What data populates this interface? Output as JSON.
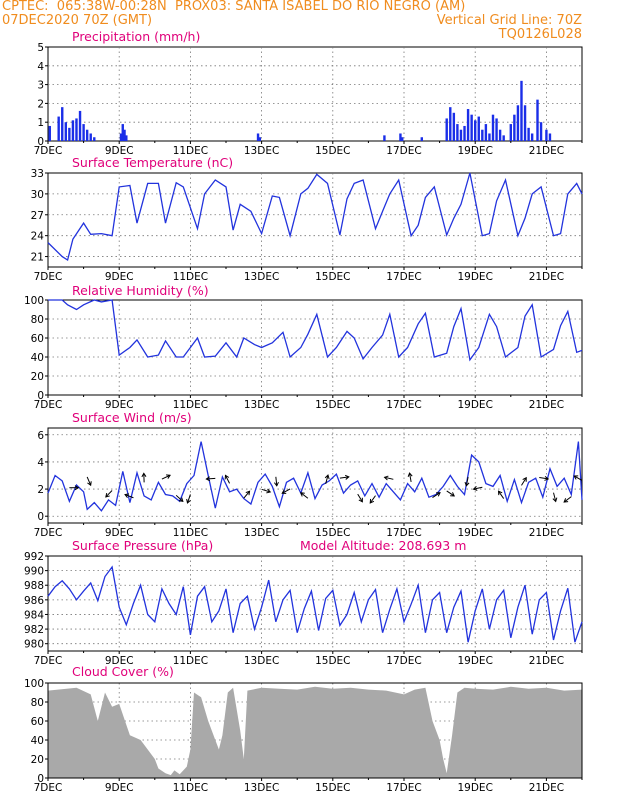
{
  "header": {
    "line1": "CPTEC:  065:38W-00:28N  PROX03: SANTA ISABEL DO RIO NEGRO (AM)",
    "line2_left": "07DEC2020 70Z (GMT)",
    "line2_right": "Vertical Grid Line: 70Z",
    "line3_right": "TQ0126L028"
  },
  "x_tick_labels": [
    "7DEC",
    "9DEC",
    "11DEC",
    "13DEC",
    "15DEC",
    "17DEC",
    "19DEC",
    "21DEC"
  ],
  "colors": {
    "header": "#f08c1e",
    "title": "#e0007a",
    "line": "#2233dd",
    "bar": "#1a2ee8",
    "cloud": "#a9a9a9"
  },
  "chart_data": [
    {
      "type": "bar",
      "title": "Precipitation (mm/h)",
      "xlim_days": [
        7,
        22
      ],
      "ylim": [
        0,
        5
      ],
      "yticks": [
        0,
        1,
        2,
        3,
        4,
        5
      ],
      "bars": [
        [
          7.05,
          0.8
        ],
        [
          7.3,
          1.3
        ],
        [
          7.4,
          1.8
        ],
        [
          7.5,
          1.0
        ],
        [
          7.6,
          0.7
        ],
        [
          7.7,
          1.1
        ],
        [
          7.8,
          1.2
        ],
        [
          7.9,
          1.6
        ],
        [
          8.0,
          0.9
        ],
        [
          8.1,
          0.6
        ],
        [
          8.2,
          0.4
        ],
        [
          8.3,
          0.2
        ],
        [
          9.05,
          0.4
        ],
        [
          9.1,
          0.9
        ],
        [
          9.15,
          0.6
        ],
        [
          9.2,
          0.3
        ],
        [
          12.9,
          0.4
        ],
        [
          12.95,
          0.2
        ],
        [
          16.45,
          0.3
        ],
        [
          16.9,
          0.4
        ],
        [
          16.95,
          0.2
        ],
        [
          17.5,
          0.2
        ],
        [
          18.2,
          1.2
        ],
        [
          18.3,
          1.8
        ],
        [
          18.4,
          1.5
        ],
        [
          18.5,
          0.9
        ],
        [
          18.6,
          0.6
        ],
        [
          18.7,
          0.8
        ],
        [
          18.8,
          1.7
        ],
        [
          18.9,
          1.4
        ],
        [
          19.0,
          1.1
        ],
        [
          19.1,
          1.3
        ],
        [
          19.2,
          0.6
        ],
        [
          19.3,
          0.9
        ],
        [
          19.4,
          0.4
        ],
        [
          19.5,
          1.4
        ],
        [
          19.6,
          1.2
        ],
        [
          19.7,
          0.6
        ],
        [
          19.8,
          0.3
        ],
        [
          20.0,
          0.9
        ],
        [
          20.1,
          1.4
        ],
        [
          20.2,
          1.9
        ],
        [
          20.3,
          3.2
        ],
        [
          20.4,
          1.9
        ],
        [
          20.5,
          0.7
        ],
        [
          20.6,
          0.4
        ],
        [
          20.75,
          2.2
        ],
        [
          20.85,
          1.0
        ],
        [
          21.0,
          0.6
        ],
        [
          21.1,
          0.4
        ]
      ]
    },
    {
      "type": "line",
      "title": "Surface Temperature (nC)",
      "ylim": [
        19.5,
        33
      ],
      "yticks": [
        21,
        24,
        27,
        30,
        33
      ],
      "series": [
        {
          "x": [
            7.0,
            7.4,
            7.55,
            7.7,
            8.0,
            8.2,
            8.5,
            8.8,
            9.0,
            9.3,
            9.5,
            9.8,
            10.1,
            10.3,
            10.6,
            10.8,
            11.2,
            11.4,
            11.7,
            12.0,
            12.2,
            12.4,
            12.7,
            13.0,
            13.3,
            13.5,
            13.8,
            14.1,
            14.3,
            14.55,
            14.85,
            15.2,
            15.4,
            15.6,
            15.85,
            16.2,
            16.4,
            16.6,
            16.85,
            17.2,
            17.4,
            17.6,
            17.85,
            18.2,
            18.4,
            18.6,
            18.85,
            19.2,
            19.4,
            19.6,
            19.85,
            20.2,
            20.4,
            20.6,
            20.85,
            21.2,
            21.4,
            21.6,
            21.85,
            22.0
          ],
          "values": [
            23.0,
            21.0,
            20.5,
            23.5,
            25.8,
            24.2,
            24.3,
            24.0,
            31.0,
            31.2,
            25.8,
            31.5,
            31.5,
            25.8,
            31.6,
            31.0,
            25.0,
            30.0,
            32.0,
            31.0,
            24.8,
            28.5,
            27.5,
            24.3,
            29.7,
            29.5,
            24.0,
            30.0,
            30.8,
            32.8,
            31.5,
            24.1,
            29.3,
            31.5,
            32.0,
            25.0,
            27.5,
            30.0,
            32.0,
            24.0,
            25.5,
            29.5,
            31.0,
            24.1,
            26.5,
            28.5,
            33.0,
            24.0,
            24.3,
            29.0,
            32.0,
            24.0,
            26.5,
            30.0,
            31.0,
            24.0,
            24.3,
            30.0,
            31.5,
            30.0
          ]
        }
      ]
    },
    {
      "type": "line",
      "title": "Relative Humidity (%)",
      "ylim": [
        0,
        100
      ],
      "yticks": [
        0,
        20,
        40,
        60,
        80,
        100
      ],
      "series": [
        {
          "x": [
            7.0,
            7.4,
            7.55,
            7.8,
            8.0,
            8.3,
            8.5,
            8.8,
            9.0,
            9.3,
            9.5,
            9.8,
            10.1,
            10.3,
            10.6,
            10.8,
            11.2,
            11.4,
            11.7,
            12.0,
            12.3,
            12.5,
            12.8,
            13.0,
            13.3,
            13.6,
            13.8,
            14.1,
            14.3,
            14.55,
            14.85,
            15.1,
            15.4,
            15.6,
            15.85,
            16.1,
            16.4,
            16.6,
            16.85,
            17.1,
            17.4,
            17.6,
            17.85,
            18.2,
            18.4,
            18.6,
            18.85,
            19.1,
            19.4,
            19.6,
            19.85,
            20.2,
            20.4,
            20.6,
            20.85,
            21.2,
            21.4,
            21.6,
            21.85,
            22.0
          ],
          "values": [
            100,
            100,
            95,
            90,
            95,
            100,
            98,
            100,
            42,
            50,
            58,
            40,
            42,
            57,
            40,
            40,
            60,
            40,
            41,
            55,
            40,
            60,
            53,
            50,
            55,
            66,
            40,
            50,
            64,
            85,
            40,
            50,
            67,
            60,
            38,
            50,
            63,
            85,
            40,
            50,
            75,
            86,
            40,
            44,
            72,
            91,
            37,
            50,
            85,
            72,
            40,
            50,
            83,
            95,
            40,
            48,
            73,
            88,
            45,
            47
          ]
        }
      ]
    },
    {
      "type": "line",
      "title": "Surface Wind (m/s)",
      "ylim": [
        -0.5,
        6.5
      ],
      "yticks": [
        0,
        2,
        4,
        6
      ],
      "series": [
        {
          "x": [
            7.0,
            7.2,
            7.4,
            7.6,
            7.8,
            8.0,
            8.1,
            8.3,
            8.5,
            8.7,
            8.9,
            9.1,
            9.3,
            9.5,
            9.7,
            9.9,
            10.1,
            10.3,
            10.5,
            10.7,
            10.9,
            11.1,
            11.3,
            11.5,
            11.7,
            11.9,
            12.1,
            12.3,
            12.5,
            12.7,
            12.9,
            13.1,
            13.3,
            13.5,
            13.7,
            13.9,
            14.1,
            14.3,
            14.5,
            14.7,
            14.9,
            15.1,
            15.3,
            15.5,
            15.7,
            15.9,
            16.1,
            16.3,
            16.5,
            16.7,
            16.9,
            17.1,
            17.3,
            17.5,
            17.7,
            17.9,
            18.1,
            18.3,
            18.5,
            18.7,
            18.9,
            19.1,
            19.3,
            19.5,
            19.7,
            19.9,
            20.1,
            20.3,
            20.5,
            20.7,
            20.9,
            21.1,
            21.3,
            21.5,
            21.7,
            21.9,
            22.0
          ],
          "values": [
            1.7,
            3.0,
            2.6,
            1.1,
            2.3,
            1.8,
            0.5,
            1.0,
            0.4,
            1.2,
            0.8,
            3.3,
            1.0,
            3.2,
            1.5,
            1.2,
            2.5,
            1.6,
            1.5,
            1.1,
            2.4,
            3.0,
            5.5,
            3.0,
            0.6,
            2.9,
            1.8,
            2.0,
            1.3,
            0.9,
            2.5,
            3.1,
            2.2,
            0.7,
            2.5,
            2.8,
            1.7,
            3.2,
            1.3,
            2.3,
            2.6,
            3.1,
            1.7,
            2.3,
            2.6,
            1.5,
            2.4,
            1.4,
            2.4,
            1.8,
            1.2,
            2.4,
            1.8,
            2.8,
            1.4,
            1.6,
            2.2,
            3.0,
            2.2,
            1.6,
            4.5,
            4.0,
            2.4,
            2.2,
            3.0,
            1.1,
            2.7,
            1.0,
            2.5,
            2.8,
            1.4,
            3.5,
            2.2,
            2.8,
            1.6,
            5.5,
            1.2
          ]
        }
      ],
      "wind_arrows_x_days": [
        7.6,
        8.1,
        8.8,
        9.4,
        9.7,
        10.2,
        10.6,
        11.0,
        11.7,
        12.1,
        12.5,
        13.0,
        13.4,
        13.8,
        14.3,
        14.8,
        15.2,
        15.7,
        16.2,
        16.7,
        17.2,
        17.8,
        18.2,
        18.8,
        19.2,
        19.8,
        20.3,
        20.8,
        21.2,
        21.7,
        22.0
      ]
    },
    {
      "type": "line",
      "title": "Surface Pressure (hPa)",
      "annotation": "Model Altitude: 208.693 m",
      "ylim": [
        979,
        992
      ],
      "yticks": [
        980,
        982,
        984,
        986,
        988,
        990,
        992
      ],
      "series": [
        {
          "x": [
            7.0,
            7.2,
            7.4,
            7.6,
            7.8,
            8.0,
            8.2,
            8.4,
            8.6,
            8.8,
            9.0,
            9.2,
            9.4,
            9.6,
            9.8,
            10.0,
            10.2,
            10.4,
            10.6,
            10.8,
            11.0,
            11.2,
            11.4,
            11.6,
            11.8,
            12.0,
            12.2,
            12.4,
            12.6,
            12.8,
            13.0,
            13.2,
            13.4,
            13.6,
            13.8,
            14.0,
            14.2,
            14.4,
            14.6,
            14.8,
            15.0,
            15.2,
            15.4,
            15.6,
            15.8,
            16.0,
            16.2,
            16.4,
            16.6,
            16.8,
            17.0,
            17.2,
            17.4,
            17.6,
            17.8,
            18.0,
            18.2,
            18.4,
            18.6,
            18.8,
            19.0,
            19.2,
            19.4,
            19.6,
            19.8,
            20.0,
            20.2,
            20.4,
            20.6,
            20.8,
            21.0,
            21.2,
            21.4,
            21.6,
            21.8,
            22.0
          ],
          "values": [
            986.5,
            987.8,
            988.6,
            987.5,
            986.0,
            987.2,
            988.3,
            985.9,
            989.2,
            990.5,
            985.0,
            982.6,
            985.5,
            988.0,
            984.0,
            983.0,
            987.5,
            985.5,
            984.0,
            987.8,
            981.2,
            986.5,
            987.8,
            983.0,
            984.5,
            987.5,
            981.5,
            985.5,
            986.5,
            982.0,
            985.0,
            988.7,
            983.0,
            986.0,
            987.3,
            981.5,
            984.8,
            987.2,
            981.8,
            986.2,
            987.3,
            982.5,
            984.0,
            987.0,
            983.0,
            986.0,
            987.4,
            981.5,
            984.7,
            987.5,
            983.0,
            985.4,
            988.0,
            981.5,
            986.0,
            987.0,
            981.5,
            985.0,
            987.2,
            980.2,
            984.5,
            987.5,
            982.0,
            986.0,
            987.3,
            980.8,
            985.0,
            988.0,
            981.3,
            986.0,
            987.0,
            980.5,
            984.5,
            987.6,
            980.2,
            983.0
          ]
        }
      ]
    },
    {
      "type": "area",
      "title": "Cloud Cover (%)",
      "ylim": [
        0,
        100
      ],
      "yticks": [
        0,
        20,
        40,
        60,
        80,
        100
      ],
      "series": [
        {
          "x": [
            7.0,
            7.8,
            8.2,
            8.4,
            8.6,
            8.8,
            9.0,
            9.3,
            9.6,
            9.8,
            10.0,
            10.1,
            10.3,
            10.45,
            10.55,
            10.7,
            10.9,
            11.0,
            11.1,
            11.3,
            11.5,
            11.7,
            11.8,
            11.9,
            12.05,
            12.2,
            12.4,
            12.5,
            12.6,
            13.0,
            13.5,
            14.0,
            14.5,
            15.0,
            15.5,
            16.0,
            16.5,
            17.0,
            17.3,
            17.6,
            17.8,
            18.0,
            18.1,
            18.2,
            18.35,
            18.5,
            18.7,
            19.0,
            19.5,
            20.0,
            20.5,
            21.0,
            21.5,
            22.0
          ],
          "values": [
            92,
            95,
            88,
            60,
            90,
            75,
            78,
            45,
            40,
            30,
            20,
            10,
            5,
            3,
            8,
            4,
            12,
            30,
            90,
            85,
            60,
            40,
            30,
            45,
            90,
            95,
            50,
            20,
            92,
            95,
            94,
            93,
            96,
            94,
            95,
            93,
            92,
            88,
            93,
            95,
            60,
            40,
            20,
            5,
            45,
            90,
            95,
            94,
            93,
            96,
            94,
            95,
            92,
            93
          ]
        }
      ]
    }
  ]
}
